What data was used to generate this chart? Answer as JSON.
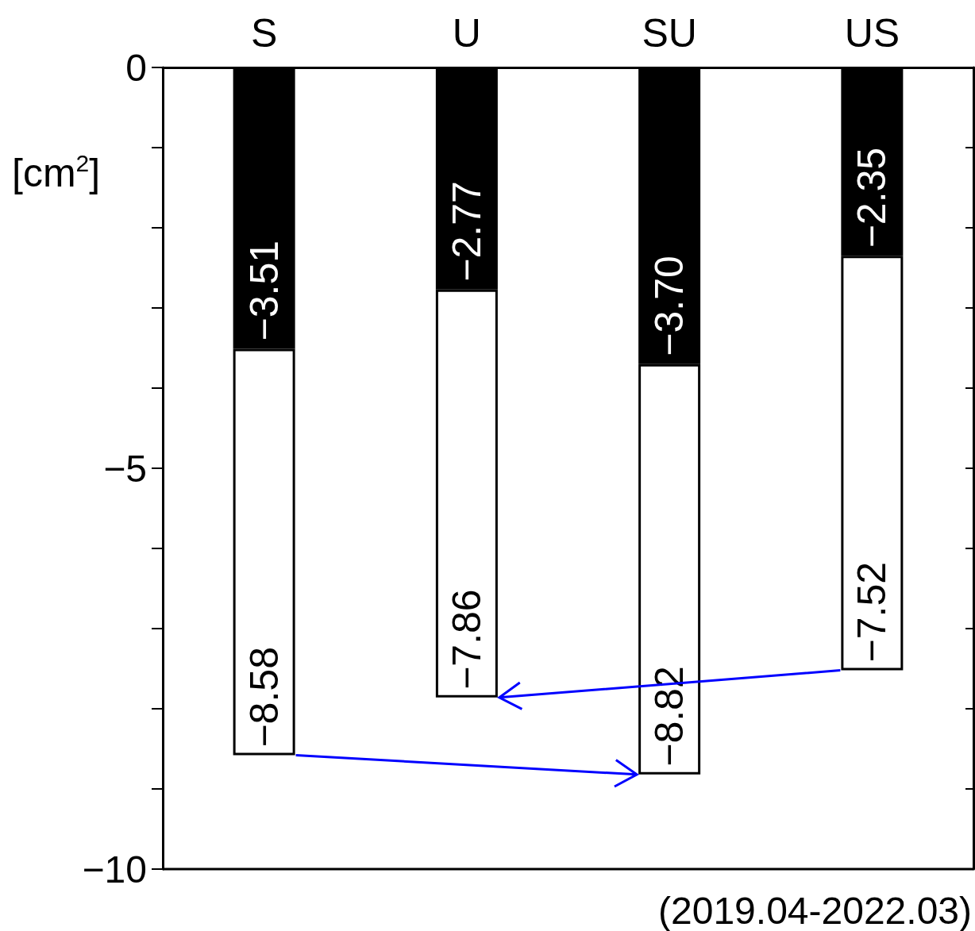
{
  "chart_data": {
    "type": "bar",
    "stacked": true,
    "ylabel": "[cm$^{2}$]",
    "annotations": [
      "(2019.04-2022.03)"
    ],
    "categories": [
      "S",
      "U",
      "SU",
      "US"
    ],
    "series": [
      {
        "color": "#000000",
        "values": [
          -3.51,
          -2.77,
          -3.7,
          -2.35
        ],
        "value_labels": [
          "−3.51",
          "−2.77",
          "−3.70",
          "−2.35"
        ]
      },
      {
        "color": "#ffffff",
        "values": [
          -5.07,
          -5.09,
          -5.12,
          -5.17
        ]
      }
    ],
    "totals": [
      "−8.58",
      "−7.86",
      "−8.82",
      "−7.52"
    ],
    "ylim": [
      -10,
      0
    ],
    "yticks": [
      0,
      {
        "value": -1,
        "label": null
      },
      {
        "value": -2,
        "label": null
      },
      {
        "value": -3,
        "label": null
      },
      {
        "value": -4,
        "label": null
      },
      {
        "value": -5,
        "label": "−5"
      },
      {
        "value": -6,
        "label": null
      },
      {
        "value": -7,
        "label": null
      },
      {
        "value": -8,
        "label": null
      },
      {
        "value": -9,
        "label": null
      },
      {
        "value": -10,
        "label": "−10"
      }
    ]
  }
}
